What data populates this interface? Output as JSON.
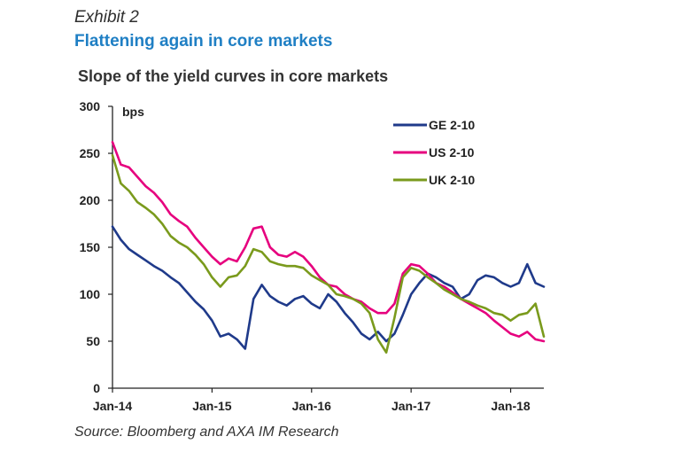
{
  "header": {
    "exhibit": "Exhibit 2",
    "title": "Flattening again in core markets"
  },
  "footer": {
    "source": "Source: Bloomberg and AXA IM Research"
  },
  "chart_data": {
    "type": "line",
    "title": "Slope of the yield curves in core markets",
    "ylabel_unit": "bps",
    "ylim": [
      0,
      300
    ],
    "yticks": [
      0,
      50,
      100,
      150,
      200,
      250,
      300
    ],
    "xticks": [
      "Jan-14",
      "Jan-15",
      "Jan-16",
      "Jan-17",
      "Jan-18"
    ],
    "xlim": [
      "2014-01",
      "2018-05"
    ],
    "grid": false,
    "legend": "top-right",
    "x": [
      "2014-01",
      "2014-02",
      "2014-03",
      "2014-04",
      "2014-05",
      "2014-06",
      "2014-07",
      "2014-08",
      "2014-09",
      "2014-10",
      "2014-11",
      "2014-12",
      "2015-01",
      "2015-02",
      "2015-03",
      "2015-04",
      "2015-05",
      "2015-06",
      "2015-07",
      "2015-08",
      "2015-09",
      "2015-10",
      "2015-11",
      "2015-12",
      "2016-01",
      "2016-02",
      "2016-03",
      "2016-04",
      "2016-05",
      "2016-06",
      "2016-07",
      "2016-08",
      "2016-09",
      "2016-10",
      "2016-11",
      "2016-12",
      "2017-01",
      "2017-02",
      "2017-03",
      "2017-04",
      "2017-05",
      "2017-06",
      "2017-07",
      "2017-08",
      "2017-09",
      "2017-10",
      "2017-11",
      "2017-12",
      "2018-01",
      "2018-02",
      "2018-03",
      "2018-04",
      "2018-05"
    ],
    "series": [
      {
        "name": "GE 2-10",
        "color": "#1f3a8a",
        "values": [
          172,
          158,
          148,
          142,
          136,
          130,
          125,
          118,
          112,
          102,
          92,
          84,
          72,
          55,
          58,
          52,
          42,
          95,
          110,
          98,
          92,
          88,
          95,
          98,
          90,
          85,
          100,
          92,
          80,
          70,
          58,
          52,
          60,
          50,
          58,
          78,
          100,
          112,
          122,
          118,
          112,
          108,
          95,
          100,
          115,
          120,
          118,
          112,
          108,
          112,
          132,
          112,
          108
        ]
      },
      {
        "name": "US 2-10",
        "color": "#e6007e",
        "values": [
          262,
          238,
          235,
          225,
          215,
          208,
          198,
          185,
          178,
          172,
          160,
          150,
          140,
          132,
          138,
          135,
          150,
          170,
          172,
          150,
          142,
          140,
          145,
          140,
          130,
          118,
          110,
          108,
          100,
          95,
          92,
          85,
          80,
          80,
          90,
          122,
          132,
          130,
          122,
          112,
          108,
          102,
          95,
          90,
          85,
          80,
          72,
          65,
          58,
          55,
          60,
          52,
          50
        ]
      },
      {
        "name": "UK 2-10",
        "color": "#7a9a1c",
        "values": [
          248,
          218,
          210,
          198,
          192,
          185,
          175,
          162,
          155,
          150,
          142,
          132,
          118,
          108,
          118,
          120,
          130,
          148,
          145,
          135,
          132,
          130,
          130,
          128,
          120,
          115,
          110,
          100,
          98,
          95,
          90,
          80,
          52,
          38,
          75,
          118,
          128,
          125,
          118,
          112,
          105,
          100,
          95,
          92,
          88,
          85,
          80,
          78,
          72,
          78,
          80,
          90,
          55
        ]
      }
    ]
  }
}
